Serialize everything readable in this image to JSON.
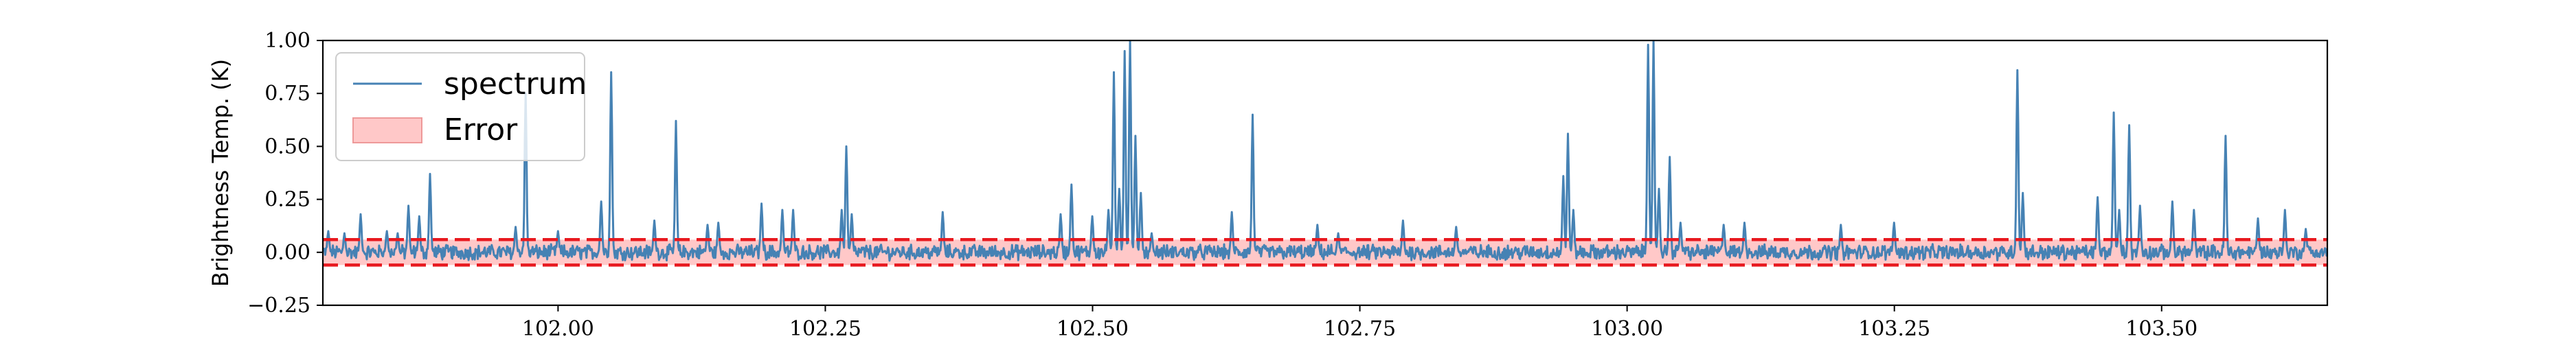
{
  "chart_data": {
    "type": "line",
    "title": "",
    "xlabel": "",
    "ylabel": "Brightness Temp. (K)",
    "xlim": [
      101.78,
      103.655
    ],
    "ylim": [
      -0.25,
      1.0
    ],
    "x_ticks": [
      102.0,
      102.25,
      102.5,
      102.75,
      103.0,
      103.25,
      103.5
    ],
    "x_tick_labels": [
      "102.00",
      "102.25",
      "102.50",
      "102.75",
      "103.00",
      "103.25",
      "103.50"
    ],
    "y_ticks": [
      -0.25,
      0.0,
      0.25,
      0.5,
      0.75,
      1.0
    ],
    "y_tick_labels": [
      "−0.25",
      "0.00",
      "0.25",
      "0.50",
      "0.75",
      "1.00"
    ],
    "grid": false,
    "legend_position": "top-left",
    "colors": {
      "spectrum": "#4682b4",
      "error_fill": "#ffc8c8",
      "error_edge": "#ee2222",
      "error_line": "#e8191f"
    },
    "error_band": {
      "name": "Error",
      "lower": -0.06,
      "upper": 0.06
    },
    "series": [
      {
        "name": "spectrum",
        "baseline_noise": 0.03,
        "peaks": [
          [
            101.785,
            0.1
          ],
          [
            101.8,
            0.09
          ],
          [
            101.815,
            0.18
          ],
          [
            101.84,
            0.1
          ],
          [
            101.85,
            0.09
          ],
          [
            101.86,
            0.22
          ],
          [
            101.87,
            0.17
          ],
          [
            101.88,
            0.37
          ],
          [
            101.96,
            0.12
          ],
          [
            101.97,
            0.75
          ],
          [
            102.0,
            0.1
          ],
          [
            102.04,
            0.24
          ],
          [
            102.05,
            0.85
          ],
          [
            102.09,
            0.15
          ],
          [
            102.11,
            0.62
          ],
          [
            102.14,
            0.13
          ],
          [
            102.15,
            0.14
          ],
          [
            102.19,
            0.23
          ],
          [
            102.21,
            0.2
          ],
          [
            102.22,
            0.2
          ],
          [
            102.265,
            0.2
          ],
          [
            102.27,
            0.5
          ],
          [
            102.275,
            0.18
          ],
          [
            102.36,
            0.19
          ],
          [
            102.47,
            0.18
          ],
          [
            102.48,
            0.32
          ],
          [
            102.5,
            0.17
          ],
          [
            102.515,
            0.2
          ],
          [
            102.52,
            0.85
          ],
          [
            102.525,
            0.3
          ],
          [
            102.53,
            0.95
          ],
          [
            102.535,
            1.0
          ],
          [
            102.54,
            0.55
          ],
          [
            102.545,
            0.28
          ],
          [
            102.555,
            0.09
          ],
          [
            102.63,
            0.19
          ],
          [
            102.65,
            0.65
          ],
          [
            102.71,
            0.13
          ],
          [
            102.73,
            0.09
          ],
          [
            102.79,
            0.15
          ],
          [
            102.84,
            0.12
          ],
          [
            102.94,
            0.36
          ],
          [
            102.945,
            0.56
          ],
          [
            102.95,
            0.2
          ],
          [
            103.02,
            0.98
          ],
          [
            103.025,
            1.0
          ],
          [
            103.03,
            0.3
          ],
          [
            103.04,
            0.45
          ],
          [
            103.05,
            0.14
          ],
          [
            103.09,
            0.13
          ],
          [
            103.11,
            0.14
          ],
          [
            103.2,
            0.13
          ],
          [
            103.25,
            0.14
          ],
          [
            103.365,
            0.86
          ],
          [
            103.37,
            0.28
          ],
          [
            103.44,
            0.26
          ],
          [
            103.455,
            0.66
          ],
          [
            103.46,
            0.2
          ],
          [
            103.47,
            0.6
          ],
          [
            103.48,
            0.22
          ],
          [
            103.51,
            0.24
          ],
          [
            103.53,
            0.2
          ],
          [
            103.56,
            0.55
          ],
          [
            103.59,
            0.16
          ],
          [
            103.615,
            0.2
          ],
          [
            103.635,
            0.11
          ]
        ]
      }
    ]
  }
}
